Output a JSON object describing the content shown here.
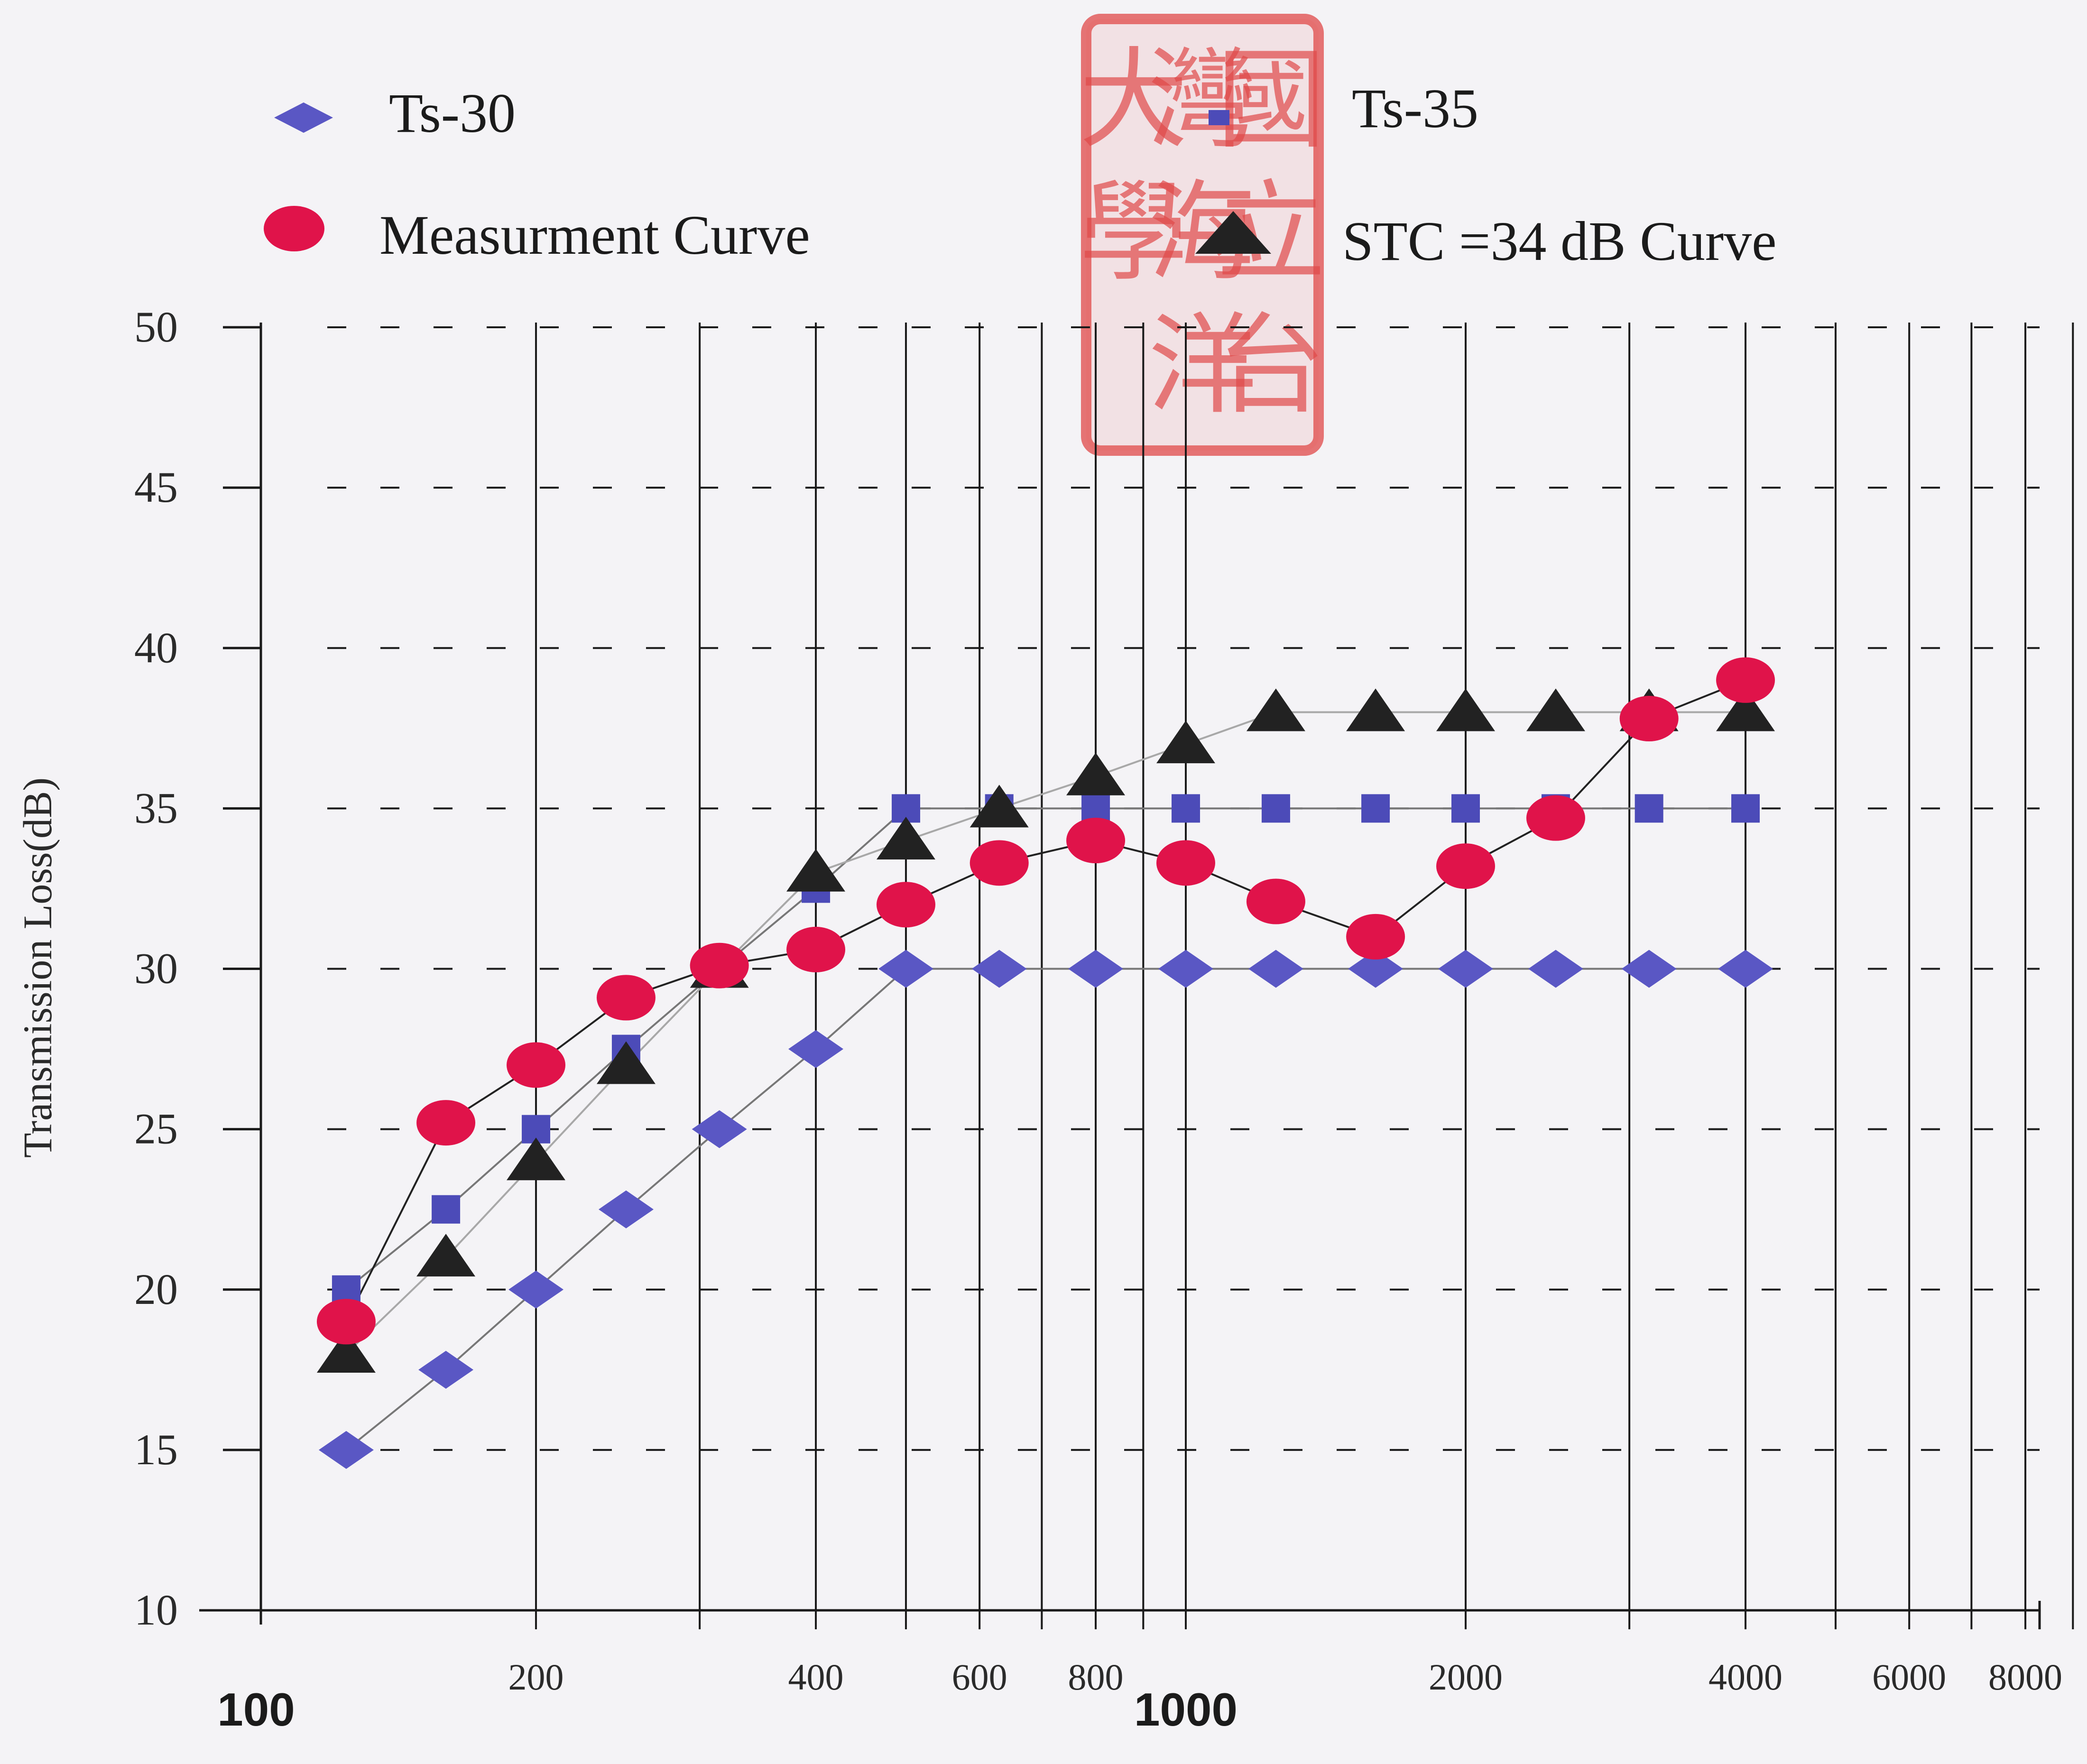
{
  "chart_data": {
    "type": "line",
    "title": "",
    "xlabel": "",
    "ylabel": "Transmission Loss(dB)",
    "x_scale": "log",
    "xlim": [
      100,
      10000
    ],
    "ylim": [
      10,
      50
    ],
    "y_ticks": [
      10,
      15,
      20,
      25,
      30,
      35,
      40,
      45,
      50
    ],
    "x_ticks": [
      {
        "value": 100,
        "label": "100",
        "style": "bold"
      },
      {
        "value": 200,
        "label": "200",
        "style": "normal"
      },
      {
        "value": 400,
        "label": "400",
        "style": "normal"
      },
      {
        "value": 600,
        "label": "600",
        "style": "normal"
      },
      {
        "value": 800,
        "label": "800",
        "style": "normal"
      },
      {
        "value": 1000,
        "label": "1000",
        "style": "bold"
      },
      {
        "value": 2000,
        "label": "2000",
        "style": "normal"
      },
      {
        "value": 4000,
        "label": "4000",
        "style": "normal"
      },
      {
        "value": 6000,
        "label": "6000",
        "style": "normal"
      },
      {
        "value": 8000,
        "label": "8000",
        "style": "normal"
      }
    ],
    "grid": {
      "vertical": "solid",
      "horizontal": "dashed"
    },
    "legend_position": "top",
    "series": [
      {
        "name": "Ts-30",
        "marker": "diamond",
        "color": "#5a57c4",
        "line_color": "#777777",
        "x": [
          125,
          160,
          200,
          250,
          315,
          400,
          500,
          630,
          800,
          1000,
          1250,
          1600,
          2000,
          2500,
          3150,
          4000
        ],
        "y": [
          15,
          17.5,
          20,
          22.5,
          25,
          27.5,
          30,
          30,
          30,
          30,
          30,
          30,
          30,
          30,
          30,
          30
        ]
      },
      {
        "name": "Ts-35",
        "marker": "square",
        "color": "#4c4bb8",
        "line_color": "#777777",
        "x": [
          125,
          160,
          200,
          250,
          315,
          400,
          500,
          630,
          800,
          1000,
          1250,
          1600,
          2000,
          2500,
          3150,
          4000
        ],
        "y": [
          20,
          22.5,
          25,
          27.5,
          30,
          32.5,
          35,
          35,
          35,
          35,
          35,
          35,
          35,
          35,
          35,
          35
        ]
      },
      {
        "name": "Measurment Curve",
        "marker": "circle",
        "color": "#e0134a",
        "line_color": "#222222",
        "x": [
          125,
          160,
          200,
          250,
          315,
          400,
          500,
          630,
          800,
          1000,
          1250,
          1600,
          2000,
          2500,
          3150,
          4000
        ],
        "y": [
          19,
          25.2,
          27,
          29.1,
          30.1,
          30.6,
          32,
          33.3,
          34,
          33.3,
          32.1,
          31,
          33.2,
          34.7,
          37.8,
          39
        ]
      },
      {
        "name": "STC =34 dB Curve",
        "marker": "triangle",
        "color": "#222222",
        "line_color": "#a8a8a8",
        "x": [
          125,
          160,
          200,
          250,
          315,
          400,
          500,
          630,
          800,
          1000,
          1250,
          1600,
          2000,
          2500,
          3150,
          4000
        ],
        "y": [
          18,
          21,
          24,
          27,
          30,
          33,
          34,
          35,
          36,
          37,
          38,
          38,
          38,
          38,
          38,
          38
        ]
      }
    ]
  },
  "colors": {
    "background": "#f4f3f6",
    "grid": "#1a1a1a",
    "seal": "#e04848"
  },
  "seal": {
    "text": "國立台灣海洋大學"
  }
}
